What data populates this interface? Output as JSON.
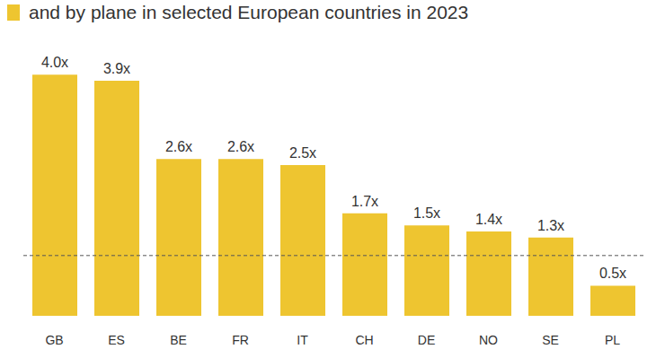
{
  "chart_data": {
    "type": "bar",
    "title": "and by plane in selected European countries in 2023",
    "categories": [
      "GB",
      "ES",
      "BE",
      "FR",
      "IT",
      "CH",
      "DE",
      "NO",
      "SE",
      "PL"
    ],
    "values": [
      4.0,
      3.9,
      2.6,
      2.6,
      2.5,
      1.7,
      1.5,
      1.4,
      1.3,
      0.5
    ],
    "value_labels": [
      "4.0x",
      "3.9x",
      "2.6x",
      "2.6x",
      "2.5x",
      "1.7x",
      "1.5x",
      "1.4x",
      "1.3x",
      "0.5x"
    ],
    "color": "#eec530",
    "ylim": [
      0,
      4.6
    ],
    "reference_line": 1,
    "data_labels": true,
    "tick_labels": "x",
    "grid": false
  }
}
